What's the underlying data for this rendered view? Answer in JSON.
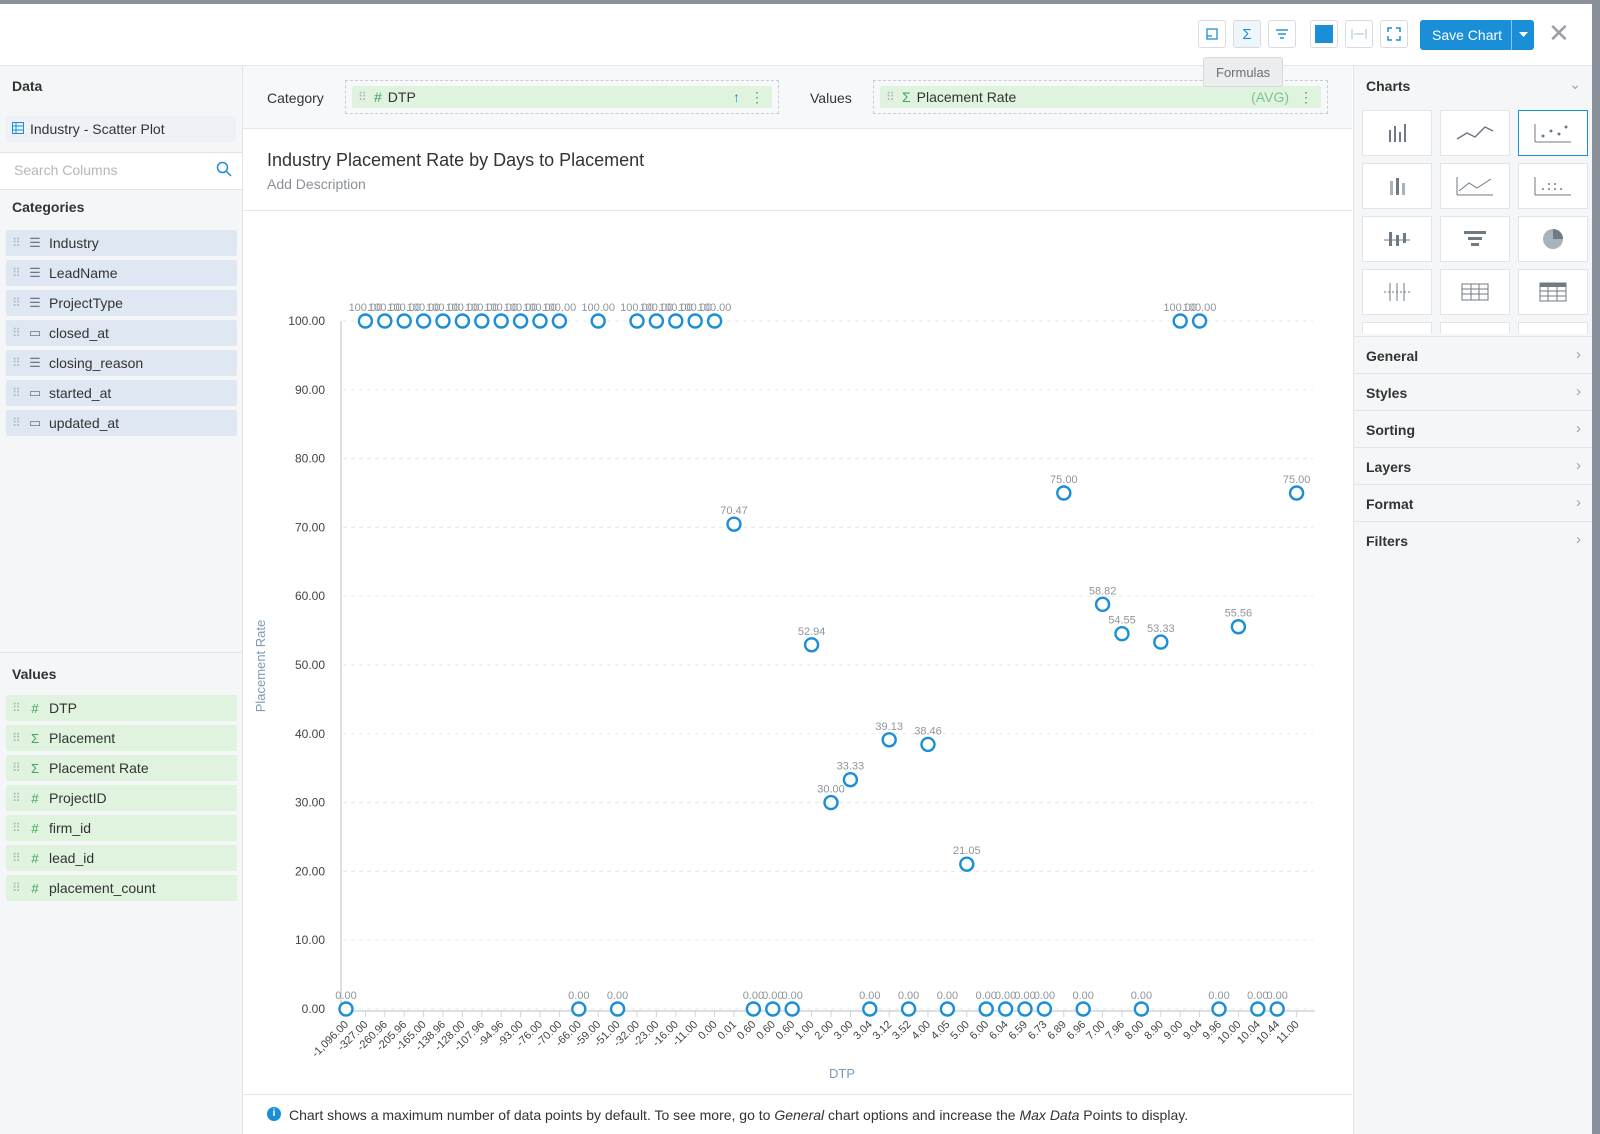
{
  "toolbar": {
    "save_label": "Save Chart",
    "tooltip": "Formulas",
    "icons": [
      "layout-icon",
      "sigma-icon",
      "filter-icon",
      "color-swatch-icon",
      "fit-width-icon",
      "fullscreen-icon"
    ]
  },
  "left_panel": {
    "data_title": "Data",
    "dataset_name": "Industry - Scatter Plot",
    "search_placeholder": "Search Columns",
    "categories_title": "Categories",
    "categories": [
      {
        "label": "Industry",
        "icon": "text-icon"
      },
      {
        "label": "LeadName",
        "icon": "text-icon"
      },
      {
        "label": "ProjectType",
        "icon": "text-icon"
      },
      {
        "label": "closed_at",
        "icon": "calendar-icon"
      },
      {
        "label": "closing_reason",
        "icon": "text-icon"
      },
      {
        "label": "started_at",
        "icon": "calendar-icon"
      },
      {
        "label": "updated_at",
        "icon": "calendar-icon"
      }
    ],
    "values_title": "Values",
    "values": [
      {
        "label": "DTP",
        "icon": "#"
      },
      {
        "label": "Placement",
        "icon": "Σ"
      },
      {
        "label": "Placement Rate",
        "icon": "Σ"
      },
      {
        "label": "ProjectID",
        "icon": "#"
      },
      {
        "label": "firm_id",
        "icon": "#"
      },
      {
        "label": "lead_id",
        "icon": "#"
      },
      {
        "label": "placement_count",
        "icon": "#"
      }
    ]
  },
  "dropbar": {
    "category_label": "Category",
    "category_field": "DTP",
    "values_label": "Values",
    "values_field": "Placement Rate",
    "values_agg": "(AVG)"
  },
  "chart_header": {
    "title": "Industry Placement Rate by Days to Placement",
    "description": "Add Description"
  },
  "chart_data": {
    "type": "scatter",
    "xlabel": "DTP",
    "ylabel": "Placement Rate",
    "ylim": [
      0,
      100
    ],
    "y_ticks": [
      "100.00",
      "90.00",
      "80.00",
      "70.00",
      "60.00",
      "50.00",
      "40.00",
      "30.00",
      "20.00",
      "10.00",
      "0.00"
    ],
    "grid": true,
    "categories": [
      "-1,096.00",
      "-327.00",
      "-260.96",
      "-205.96",
      "-165.00",
      "-138.96",
      "-128.00",
      "-107.96",
      "-94.96",
      "-93.00",
      "-76.00",
      "-70.00",
      "-66.00",
      "-59.00",
      "-51.00",
      "-32.00",
      "-23.00",
      "-16.00",
      "-11.00",
      "0.00",
      "0.01",
      "0.60",
      "0.60",
      "0.60",
      "1.00",
      "2.00",
      "3.00",
      "3.04",
      "3.12",
      "3.52",
      "4.00",
      "4.05",
      "5.00",
      "6.00",
      "6.04",
      "6.59",
      "6.73",
      "6.89",
      "6.96",
      "7.00",
      "7.96",
      "8.00",
      "8.90",
      "9.00",
      "9.04",
      "9.96",
      "10.00",
      "10.04",
      "10.44",
      "11.00"
    ],
    "values": [
      0,
      100,
      100,
      100,
      100,
      100,
      100,
      100,
      100,
      100,
      100,
      100,
      0,
      100,
      0,
      100,
      100,
      100,
      100,
      100,
      70.47,
      0,
      0,
      0,
      52.94,
      30.0,
      33.33,
      0,
      39.13,
      0,
      38.46,
      0,
      21.05,
      0,
      0,
      0,
      0,
      75.0,
      0,
      58.82,
      54.55,
      0,
      53.33,
      100,
      100,
      0,
      55.56,
      0,
      0,
      75.0
    ],
    "labels": [
      "0.00",
      "100.00",
      "100.00",
      "100.00",
      "100.00",
      "100.00",
      "100.00",
      "100.00",
      "100.00",
      "100.00",
      "100.00",
      "100.00",
      "0.00",
      "100.00",
      "0.00",
      "100.00",
      "100.00",
      "100.00",
      "100.00",
      "100.00",
      "70.47",
      "0.00",
      "0.00",
      "0.00",
      "52.94",
      "30.00",
      "33.33",
      "0.00",
      "39.13",
      "0.00",
      "38.46",
      "0.00",
      "21.05",
      "0.00",
      "0.00",
      "0.00",
      "0.00",
      "75.00",
      "0.00",
      "58.82",
      "54.55",
      "0.00",
      "53.33",
      "100.00",
      "100.00",
      "0.00",
      "55.56",
      "0.00",
      "0.00",
      "75.00"
    ],
    "marker_color": "#1a8fd8"
  },
  "footer": {
    "info_icon": "i",
    "msg_1": "Chart shows a maximum number of data points by default. To see more, go to ",
    "msg_em1": "General",
    "msg_2": " chart options and increase the ",
    "msg_em2": "Max Data",
    "msg_3": " Points to display."
  },
  "right_panel": {
    "charts_title": "Charts",
    "chart_types": [
      "bar-chart-icon",
      "line-chart-icon",
      "scatter-chart-icon",
      "stacked-bar-icon",
      "area-chart-icon",
      "dot-matrix-icon",
      "box-plot-icon",
      "funnel-icon",
      "pie-chart-icon",
      "error-bar-icon",
      "table-icon",
      "pivot-table-icon"
    ],
    "sections": [
      "General",
      "Styles",
      "Sorting",
      "Layers",
      "Format",
      "Filters"
    ]
  }
}
